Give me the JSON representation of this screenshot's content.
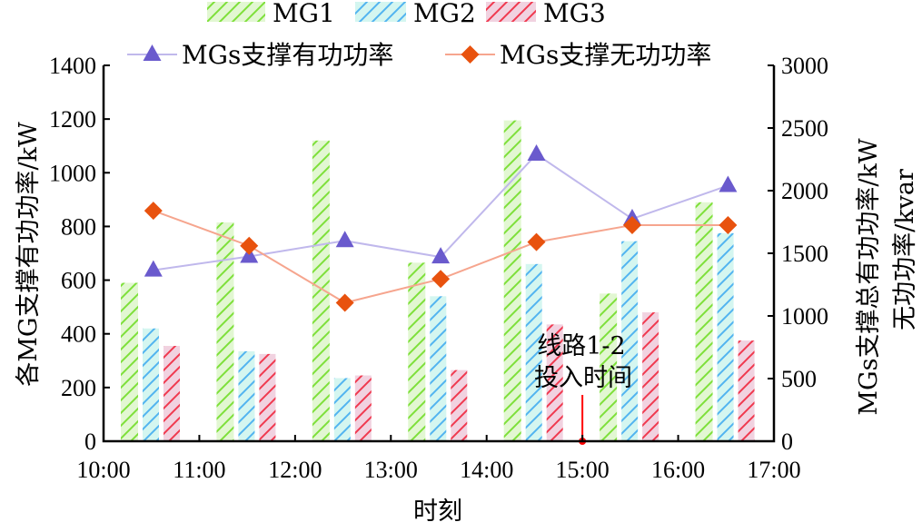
{
  "chart_data": {
    "type": "bar",
    "categories": [
      "10:00-11:00",
      "11:00-12:00",
      "12:00-13:00",
      "13:00-14:00",
      "14:00-15:00",
      "15:00-16:00",
      "16:00-17:00"
    ],
    "x_ticks": [
      "10:00",
      "11:00",
      "12:00",
      "13:00",
      "14:00",
      "15:00",
      "16:00",
      "17:00"
    ],
    "xlabel": "时刻",
    "ylabel": "各MG支撑有功功率/kW",
    "ylabel_right": [
      "MGs支撑总有功功率/kW",
      "无功功率/kvar"
    ],
    "ylim": [
      0,
      1400
    ],
    "ylim_right": [
      0,
      3000
    ],
    "y_ticks": [
      "0",
      "200",
      "400",
      "600",
      "800",
      "1000",
      "1200",
      "1400"
    ],
    "y_ticks_right": [
      "0",
      "500",
      "1000",
      "1500",
      "2000",
      "2500",
      "3000"
    ],
    "series": [
      {
        "name": "MG1",
        "type": "bar",
        "axis": "left",
        "color": "#7ee03a",
        "bg": "#e2f7d2",
        "values": [
          590,
          815,
          1120,
          665,
          1195,
          550,
          890
        ]
      },
      {
        "name": "MG2",
        "type": "bar",
        "axis": "left",
        "color": "#52b4f0",
        "bg": "#d4f6f0",
        "values": [
          420,
          335,
          235,
          540,
          660,
          745,
          775
        ]
      },
      {
        "name": "MG3",
        "type": "bar",
        "axis": "left",
        "color": "#f0394f",
        "bg": "#f1d2e0",
        "values": [
          355,
          325,
          245,
          265,
          435,
          480,
          375
        ]
      },
      {
        "name": "MGs支撑有功功率",
        "type": "line",
        "axis": "right",
        "marker": "triangle",
        "color": "#6a5acd",
        "line_color": "#c0b8ec",
        "values": [
          1365,
          1475,
          1600,
          1470,
          2290,
          1775,
          2040
        ]
      },
      {
        "name": "MGs支撑无功功率",
        "type": "line",
        "axis": "right",
        "marker": "diamond",
        "color": "#e8520e",
        "line_color": "#f6a58e",
        "values": [
          1840,
          1560,
          1105,
          1295,
          1590,
          1725,
          1725
        ]
      }
    ],
    "annotation": {
      "lines": [
        "线路1-2",
        "投入时间"
      ],
      "at": "15:00",
      "color": "#ff0000"
    },
    "legend_placement": "top"
  }
}
